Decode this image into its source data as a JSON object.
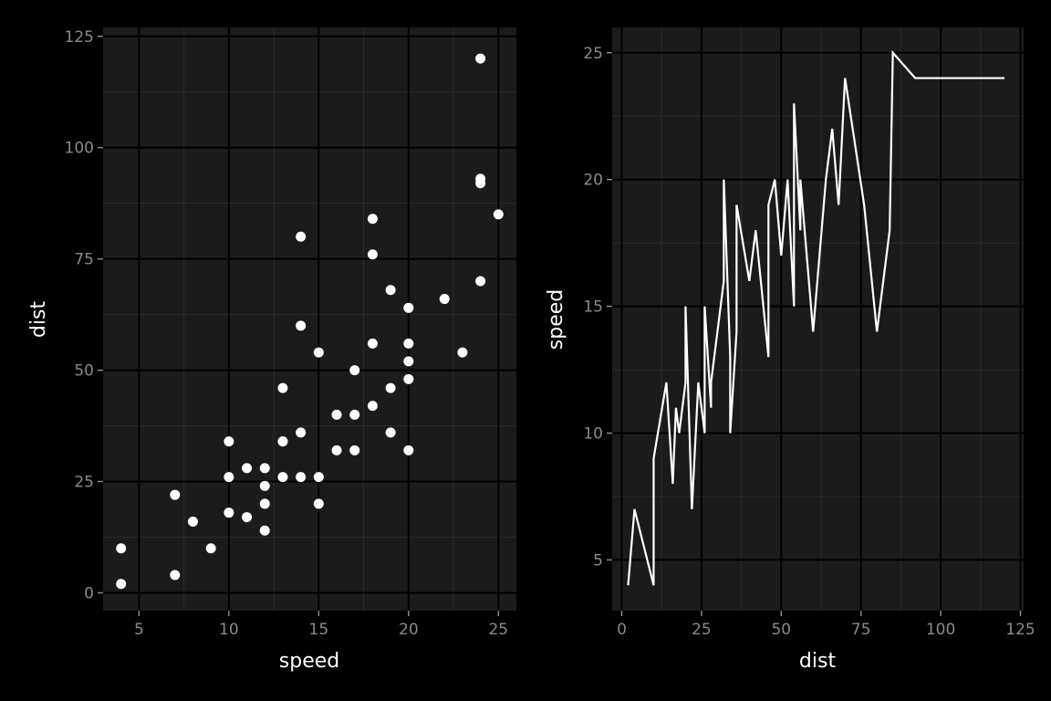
{
  "colors": {
    "figure_background": "#000000",
    "panel_background": "#1b1b1b",
    "grid_major": "#000000",
    "grid_minor": "#2c2c2c",
    "mark": "#ffffff",
    "axis_text": "#8a8a8a",
    "axis_title": "#ffffff"
  },
  "chart_data": [
    {
      "type": "scatter",
      "title": "",
      "xlabel": "speed",
      "ylabel": "dist",
      "xlim": [
        3,
        26
      ],
      "ylim": [
        -4,
        127
      ],
      "x_ticks": [
        5,
        10,
        15,
        20,
        25
      ],
      "y_ticks": [
        0,
        25,
        50,
        75,
        100,
        125
      ],
      "grid": true,
      "legend": "none",
      "points": [
        {
          "x": 4,
          "y": 2
        },
        {
          "x": 4,
          "y": 10
        },
        {
          "x": 7,
          "y": 4
        },
        {
          "x": 7,
          "y": 22
        },
        {
          "x": 8,
          "y": 16
        },
        {
          "x": 9,
          "y": 10
        },
        {
          "x": 10,
          "y": 18
        },
        {
          "x": 10,
          "y": 26
        },
        {
          "x": 10,
          "y": 34
        },
        {
          "x": 11,
          "y": 17
        },
        {
          "x": 11,
          "y": 28
        },
        {
          "x": 12,
          "y": 14
        },
        {
          "x": 12,
          "y": 20
        },
        {
          "x": 12,
          "y": 24
        },
        {
          "x": 12,
          "y": 28
        },
        {
          "x": 13,
          "y": 26
        },
        {
          "x": 13,
          "y": 34
        },
        {
          "x": 13,
          "y": 34
        },
        {
          "x": 13,
          "y": 46
        },
        {
          "x": 14,
          "y": 26
        },
        {
          "x": 14,
          "y": 36
        },
        {
          "x": 14,
          "y": 60
        },
        {
          "x": 14,
          "y": 80
        },
        {
          "x": 15,
          "y": 20
        },
        {
          "x": 15,
          "y": 26
        },
        {
          "x": 15,
          "y": 54
        },
        {
          "x": 16,
          "y": 32
        },
        {
          "x": 16,
          "y": 40
        },
        {
          "x": 17,
          "y": 32
        },
        {
          "x": 17,
          "y": 40
        },
        {
          "x": 17,
          "y": 50
        },
        {
          "x": 18,
          "y": 42
        },
        {
          "x": 18,
          "y": 56
        },
        {
          "x": 18,
          "y": 76
        },
        {
          "x": 18,
          "y": 84
        },
        {
          "x": 19,
          "y": 36
        },
        {
          "x": 19,
          "y": 46
        },
        {
          "x": 19,
          "y": 68
        },
        {
          "x": 20,
          "y": 32
        },
        {
          "x": 20,
          "y": 48
        },
        {
          "x": 20,
          "y": 52
        },
        {
          "x": 20,
          "y": 56
        },
        {
          "x": 20,
          "y": 64
        },
        {
          "x": 22,
          "y": 66
        },
        {
          "x": 23,
          "y": 54
        },
        {
          "x": 24,
          "y": 70
        },
        {
          "x": 24,
          "y": 92
        },
        {
          "x": 24,
          "y": 93
        },
        {
          "x": 24,
          "y": 120
        },
        {
          "x": 25,
          "y": 85
        }
      ]
    },
    {
      "type": "line",
      "title": "",
      "xlabel": "dist",
      "ylabel": "speed",
      "xlim": [
        -3,
        126
      ],
      "ylim": [
        3,
        26
      ],
      "x_ticks": [
        0,
        25,
        50,
        75,
        100,
        125
      ],
      "y_ticks": [
        5,
        10,
        15,
        20,
        25
      ],
      "grid": true,
      "legend": "none",
      "points": [
        {
          "x": 2,
          "y": 4
        },
        {
          "x": 4,
          "y": 7
        },
        {
          "x": 10,
          "y": 4
        },
        {
          "x": 10,
          "y": 9
        },
        {
          "x": 14,
          "y": 12
        },
        {
          "x": 16,
          "y": 8
        },
        {
          "x": 17,
          "y": 11
        },
        {
          "x": 18,
          "y": 10
        },
        {
          "x": 20,
          "y": 12
        },
        {
          "x": 20,
          "y": 15
        },
        {
          "x": 22,
          "y": 7
        },
        {
          "x": 24,
          "y": 12
        },
        {
          "x": 26,
          "y": 10
        },
        {
          "x": 26,
          "y": 15
        },
        {
          "x": 28,
          "y": 11
        },
        {
          "x": 28,
          "y": 12
        },
        {
          "x": 32,
          "y": 16
        },
        {
          "x": 32,
          "y": 20
        },
        {
          "x": 34,
          "y": 13
        },
        {
          "x": 34,
          "y": 10
        },
        {
          "x": 36,
          "y": 14
        },
        {
          "x": 36,
          "y": 19
        },
        {
          "x": 40,
          "y": 16
        },
        {
          "x": 42,
          "y": 18
        },
        {
          "x": 46,
          "y": 13
        },
        {
          "x": 46,
          "y": 19
        },
        {
          "x": 48,
          "y": 20
        },
        {
          "x": 50,
          "y": 17
        },
        {
          "x": 52,
          "y": 20
        },
        {
          "x": 54,
          "y": 15
        },
        {
          "x": 54,
          "y": 23
        },
        {
          "x": 56,
          "y": 18
        },
        {
          "x": 56,
          "y": 20
        },
        {
          "x": 60,
          "y": 14
        },
        {
          "x": 64,
          "y": 20
        },
        {
          "x": 66,
          "y": 22
        },
        {
          "x": 68,
          "y": 19
        },
        {
          "x": 70,
          "y": 24
        },
        {
          "x": 76,
          "y": 19
        },
        {
          "x": 80,
          "y": 14
        },
        {
          "x": 84,
          "y": 18
        },
        {
          "x": 85,
          "y": 25
        },
        {
          "x": 92,
          "y": 24
        },
        {
          "x": 93,
          "y": 24
        },
        {
          "x": 120,
          "y": 24
        }
      ]
    }
  ]
}
